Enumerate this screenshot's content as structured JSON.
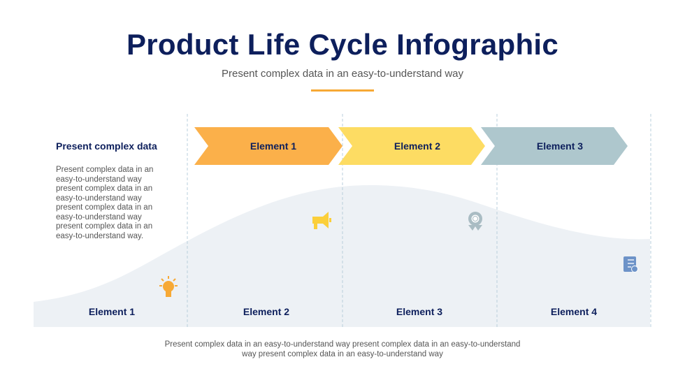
{
  "title": "Product Life Cycle Infographic",
  "subtitle": "Present complex data in an easy-to-understand way",
  "side": {
    "heading": "Present complex data",
    "body": "Present complex data in an easy-to-understand way present complex data in an easy-to-understand way present complex data in an easy-to-understand way present complex data in an easy-to-understand way."
  },
  "chevrons": [
    {
      "label": "Element 1",
      "color": "#fbb04a"
    },
    {
      "label": "Element 2",
      "color": "#fddc63"
    },
    {
      "label": "Element 3",
      "color": "#aec7cd"
    }
  ],
  "stages": [
    {
      "label": "Element 1",
      "icon": "lightbulb-icon"
    },
    {
      "label": "Element 2",
      "icon": "megaphone-icon"
    },
    {
      "label": "Element 3",
      "icon": "award-globe-icon"
    },
    {
      "label": "Element 4",
      "icon": "checklist-icon"
    }
  ],
  "footer": "Present complex data in an easy-to-understand way present complex data in an easy-to-understand way present complex data in an easy-to-understand way"
}
